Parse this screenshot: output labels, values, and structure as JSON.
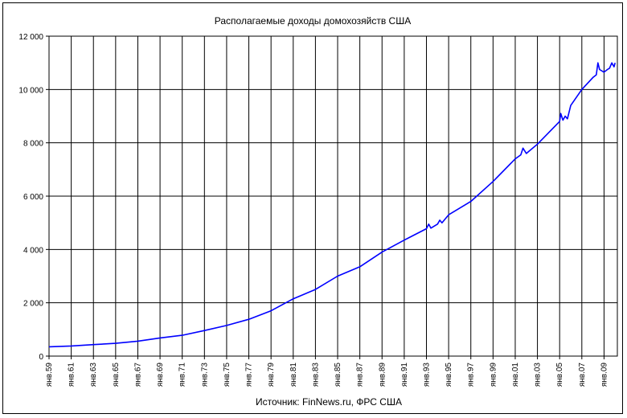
{
  "chart_data": {
    "type": "line",
    "title": "Располагаемые доходы домохозяйств США",
    "xlabel": "Источник: FinNews.ru, ФРС США",
    "ylabel": "",
    "ylim": [
      0,
      12000
    ],
    "yticks": [
      0,
      2000,
      4000,
      6000,
      8000,
      10000,
      12000
    ],
    "ytick_labels": [
      "0",
      "2 000",
      "4 000",
      "6 000",
      "8 000",
      "10 000",
      "12 000"
    ],
    "xlim": [
      1959,
      2010.2
    ],
    "xticks": [
      1959,
      1961,
      1963,
      1965,
      1967,
      1969,
      1971,
      1973,
      1975,
      1977,
      1979,
      1981,
      1983,
      1985,
      1987,
      1989,
      1991,
      1993,
      1995,
      1997,
      1999,
      2001,
      2003,
      2005,
      2007,
      2009
    ],
    "xtick_labels": [
      "янв.59",
      "янв.61",
      "янв.63",
      "янв.65",
      "янв.67",
      "янв.69",
      "янв.71",
      "янв.73",
      "янв.75",
      "янв.77",
      "янв.79",
      "янв.81",
      "янв.83",
      "янв.85",
      "янв.87",
      "янв.89",
      "янв.91",
      "янв.93",
      "янв.95",
      "янв.97",
      "янв.99",
      "янв.01",
      "янв.03",
      "янв.05",
      "янв.07",
      "янв.09"
    ],
    "grid": true,
    "series_color": "#0000ff",
    "series": [
      {
        "x": [
          1959,
          1961,
          1963,
          1965,
          1967,
          1969,
          1971,
          1973,
          1975,
          1977,
          1979,
          1981,
          1983,
          1985,
          1987,
          1989,
          1991,
          1993,
          1993.2,
          1993.4,
          1994,
          1994.2,
          1994.4,
          1995,
          1997,
          1999,
          2001,
          2001.5,
          2001.7,
          2002,
          2003,
          2005,
          2005.1,
          2005.3,
          2005.5,
          2005.7,
          2006,
          2007,
          2008,
          2008.3,
          2008.45,
          2008.6,
          2009,
          2009.3,
          2009.5,
          2009.7,
          2009.9,
          2010
        ],
        "y": [
          350,
          380,
          430,
          480,
          560,
          680,
          780,
          960,
          1150,
          1380,
          1700,
          2150,
          2500,
          3000,
          3350,
          3900,
          4350,
          4780,
          4950,
          4800,
          4950,
          5100,
          5000,
          5300,
          5800,
          6550,
          7400,
          7550,
          7800,
          7600,
          7950,
          8800,
          9100,
          8850,
          9000,
          8900,
          9400,
          10000,
          10450,
          10550,
          11000,
          10750,
          10650,
          10750,
          10800,
          11000,
          10850,
          11000
        ]
      }
    ]
  }
}
